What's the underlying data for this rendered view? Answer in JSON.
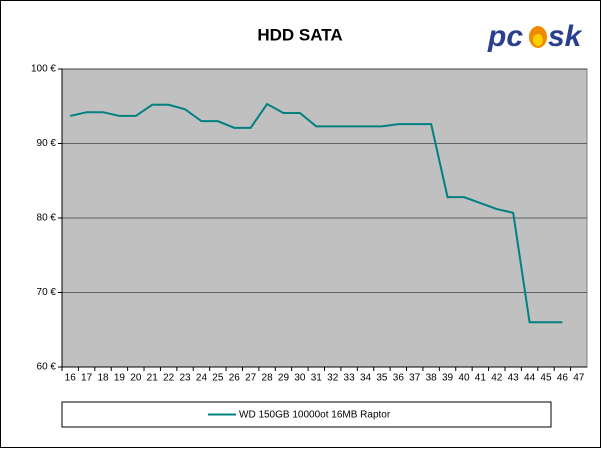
{
  "chart_data": {
    "type": "line",
    "title": "HDD SATA",
    "logo": {
      "left": "pc",
      "right": "sk"
    },
    "categories": [
      "16",
      "17",
      "18",
      "19",
      "20",
      "21",
      "22",
      "23",
      "24",
      "25",
      "26",
      "27",
      "28",
      "29",
      "30",
      "31",
      "32",
      "33",
      "34",
      "35",
      "36",
      "37",
      "38",
      "39",
      "40",
      "41",
      "42",
      "43",
      "44",
      "45",
      "46",
      "47"
    ],
    "series": [
      {
        "name": "WD 150GB 10000ot 16MB Raptor",
        "color": "#008080",
        "values": [
          93.7,
          94.2,
          94.2,
          93.7,
          93.7,
          95.2,
          95.2,
          94.6,
          93.0,
          93.0,
          92.1,
          92.1,
          95.3,
          94.1,
          94.1,
          92.3,
          92.3,
          92.3,
          92.3,
          92.3,
          92.6,
          92.6,
          92.6,
          82.8,
          82.8,
          82.0,
          81.2,
          80.7,
          66.0,
          66.0,
          66.0,
          null
        ]
      }
    ],
    "ylim": [
      60,
      100
    ],
    "yticks": [
      {
        "value": 60,
        "label": "60 €"
      },
      {
        "value": 70,
        "label": "70 €"
      },
      {
        "value": 80,
        "label": "80 €"
      },
      {
        "value": 90,
        "label": "90 €"
      },
      {
        "value": 100,
        "label": "100 €"
      }
    ],
    "grid": true,
    "plot_background": "#c0c0c0",
    "legend": "bottom"
  }
}
